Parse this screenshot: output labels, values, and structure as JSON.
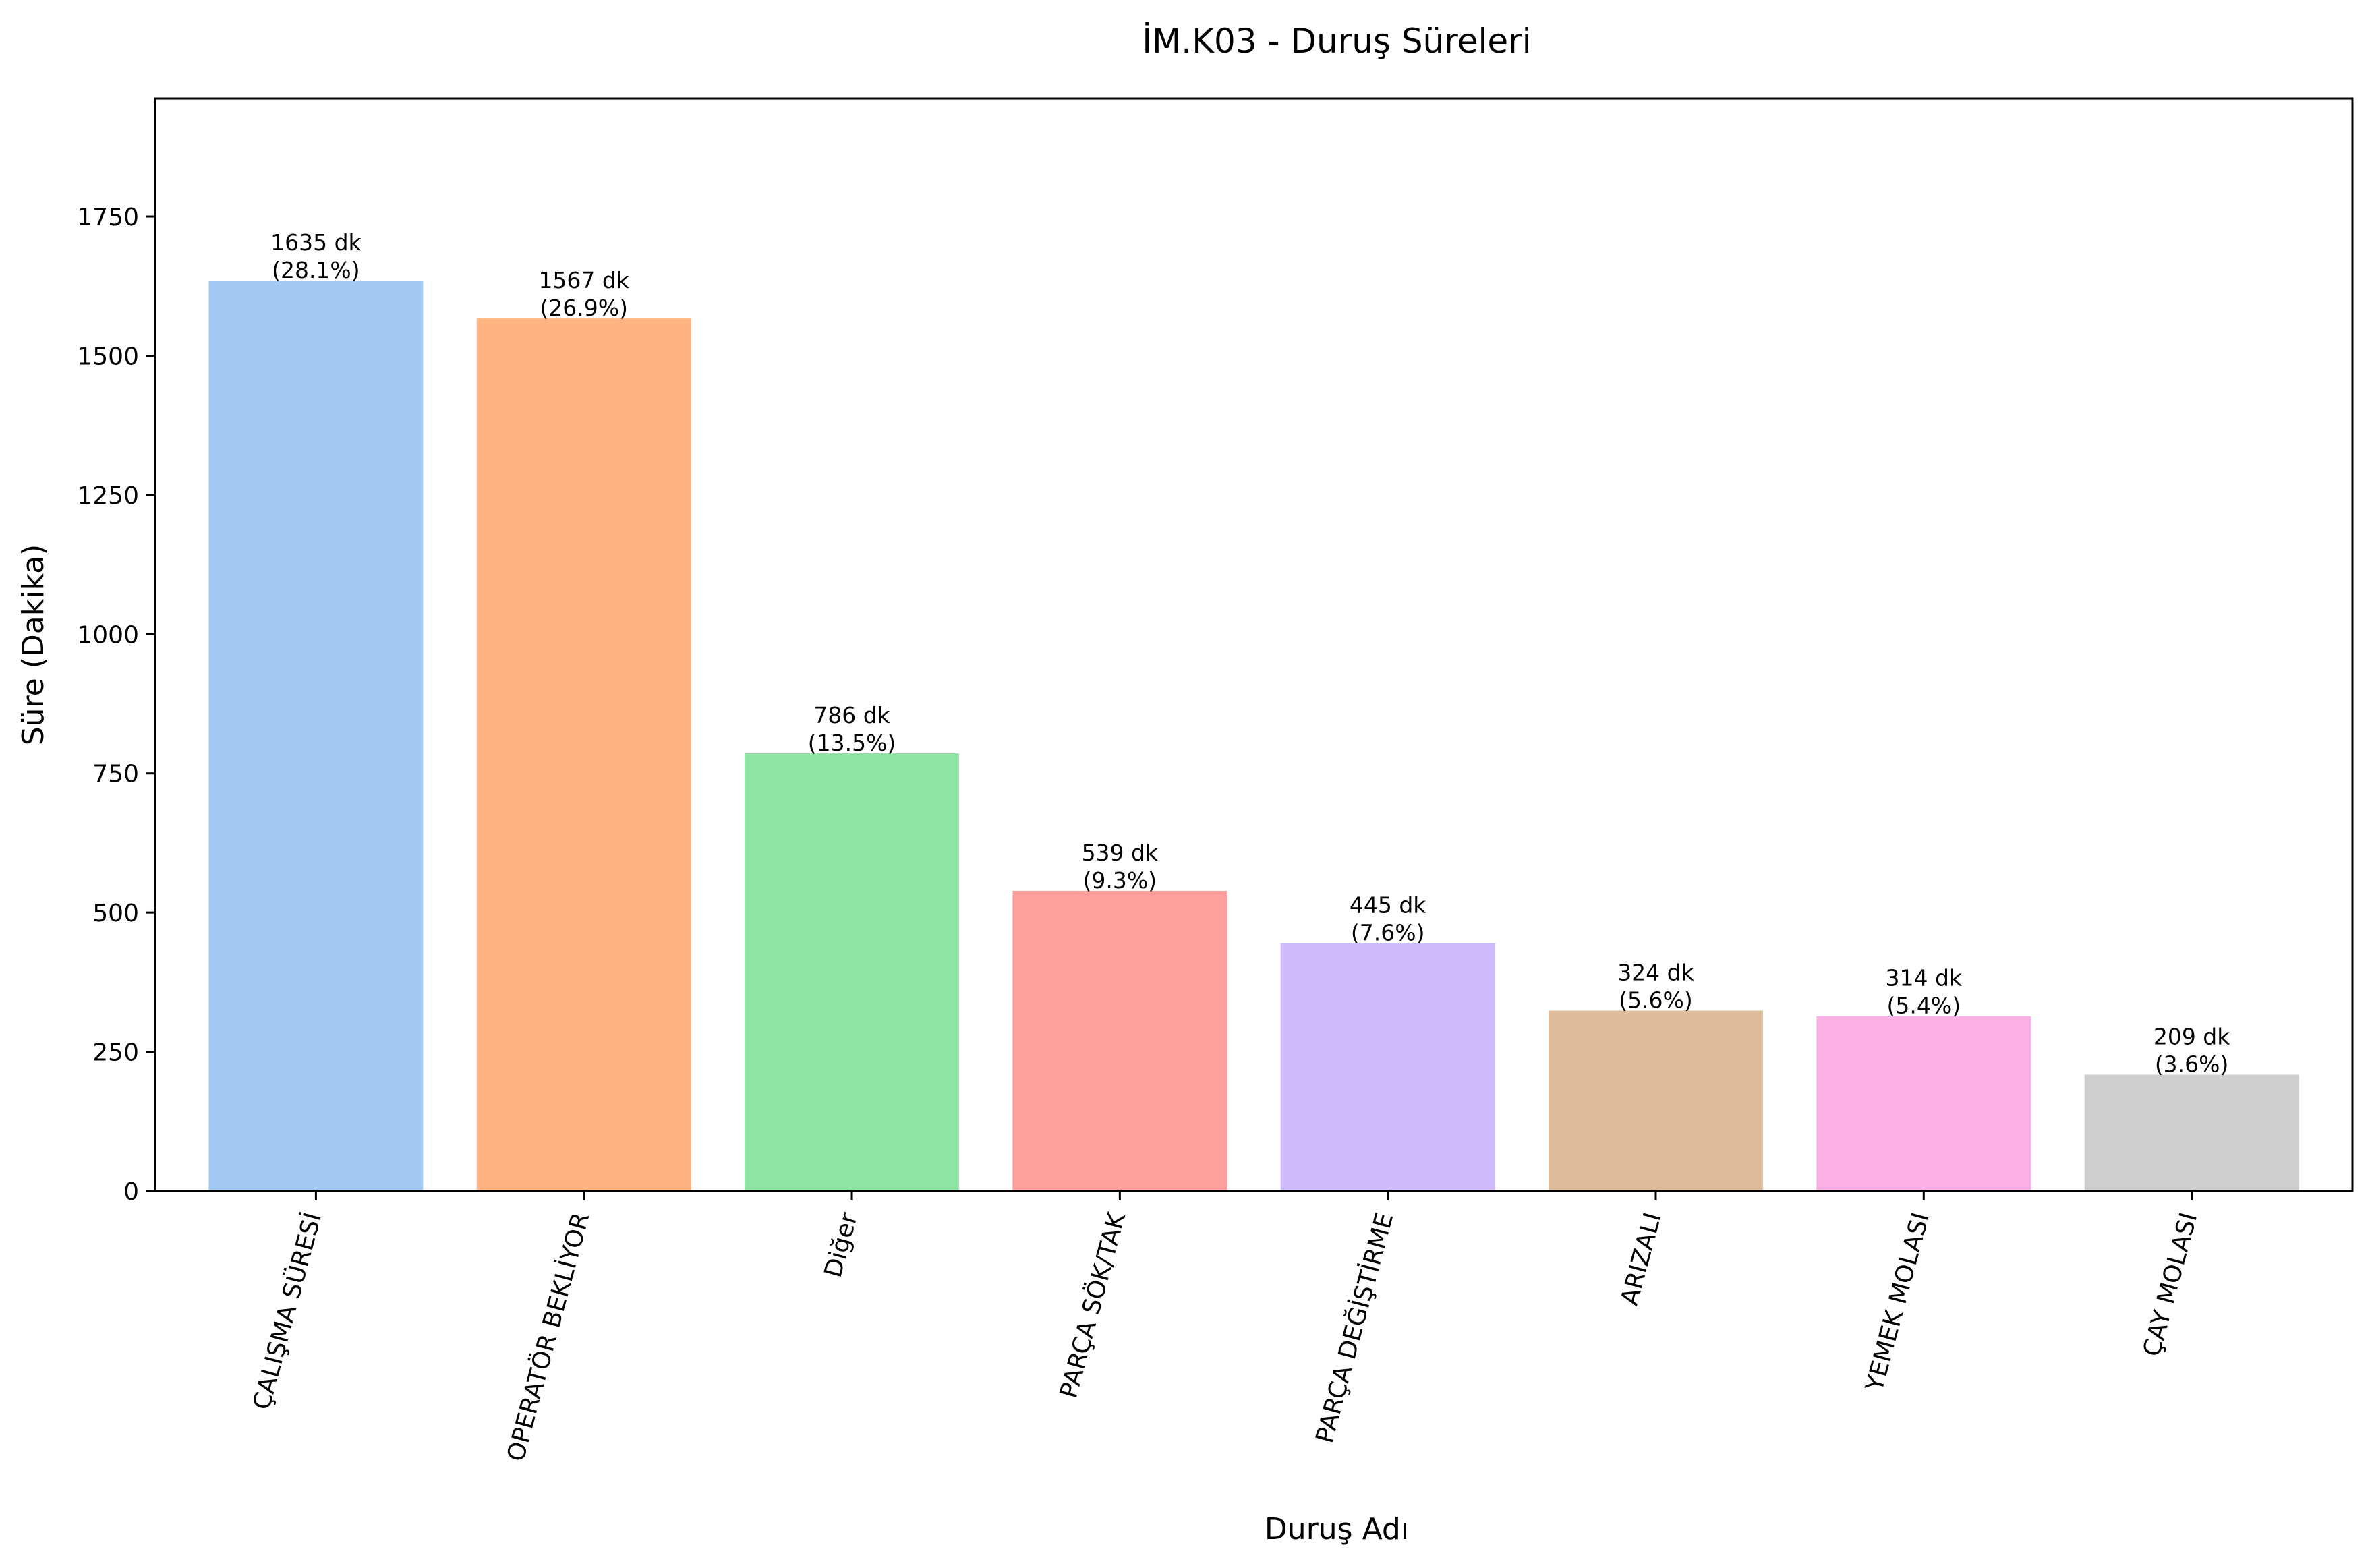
{
  "chart_data": {
    "type": "bar",
    "title": "İM.K03 - Duruş Süreleri",
    "xlabel": "Duruş Adı",
    "ylabel": "Süre (Dakika)",
    "ylim": [
      0,
      1962
    ],
    "yticks": [
      0,
      250,
      500,
      750,
      1000,
      1250,
      1500,
      1750
    ],
    "grid": false,
    "categories": [
      "ÇALIŞMA SÜRESİ",
      "OPERATÖR BEKLİYOR",
      "Diğer",
      "PARÇA SÖK/TAK",
      "PARÇA DEĞİŞTİRME",
      "ARIZALI",
      "YEMEK MOLASI",
      "ÇAY MOLASI"
    ],
    "values": [
      1635,
      1567,
      786,
      539,
      445,
      324,
      314,
      209
    ],
    "data_labels": [
      "1635 dk",
      "1567 dk",
      "786 dk",
      "539 dk",
      "445 dk",
      "324 dk",
      "314 dk",
      "209 dk"
    ],
    "percent_labels": [
      "(28.1%)",
      "(26.9%)",
      "(13.5%)",
      "(9.3%)",
      "(7.6%)",
      "(5.6%)",
      "(5.4%)",
      "(3.6%)"
    ],
    "colors": [
      "#a1c9f4",
      "#ffb482",
      "#8de5a1",
      "#ff9f9b",
      "#d0bbff",
      "#debb9b",
      "#fab0e4",
      "#cfcfcf"
    ]
  }
}
